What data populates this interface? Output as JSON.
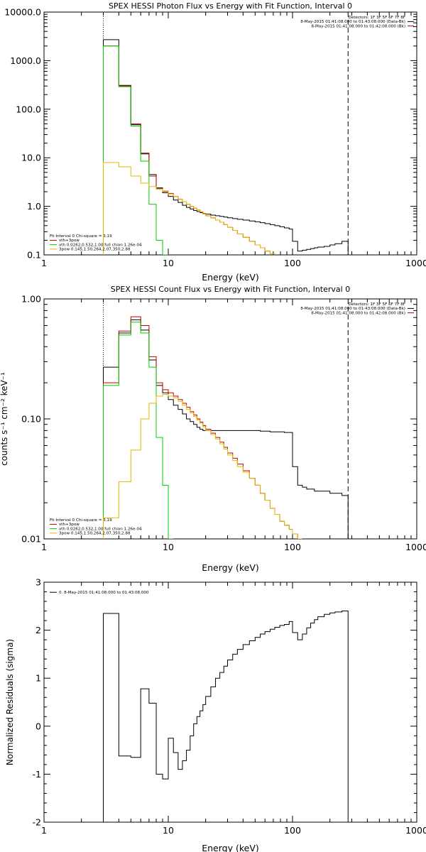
{
  "chart_data": [
    {
      "type": "line",
      "title": "SPEX HESSI Photon Flux vs Energy with Fit Function, Interval 0",
      "xlabel": "Energy (keV)",
      "ylabel": "",
      "xscale": "log",
      "yscale": "log",
      "xlim": [
        1,
        1000
      ],
      "ylim": [
        0.1,
        10000
      ],
      "xticks": [
        {
          "v": 1,
          "label": "1"
        },
        {
          "v": 10,
          "label": "10"
        },
        {
          "v": 100,
          "label": "100"
        },
        {
          "v": 1000,
          "label": "1000"
        }
      ],
      "yticks": [
        {
          "v": 0.1,
          "label": "0.1"
        },
        {
          "v": 1,
          "label": "1.0"
        },
        {
          "v": 10,
          "label": "10.0"
        },
        {
          "v": 100,
          "label": "100.0"
        },
        {
          "v": 1000,
          "label": "1000.0"
        },
        {
          "v": 10000,
          "label": "10000.0"
        }
      ],
      "energy_range_markers": [
        {
          "x": 3,
          "style": "dotted"
        },
        {
          "x": 280,
          "style": "dashed"
        }
      ],
      "legend_top_right": {
        "lines": [
          {
            "text": "Detectors: 1F 3F 5F 6F 7F 8F",
            "color": ""
          },
          {
            "text": "8-May-2015 01:41:08.000 to 01:43:08.000 (Data-Bk)",
            "color": "#000000"
          },
          {
            "text": "8-May-2015 01:41:08.000 to 01:42:08.000 (Bk)",
            "color": "#c00000"
          }
        ]
      },
      "legend_bottom_left": {
        "lines": [
          {
            "text": "Fit Interval 0   Chi-square = 3.19",
            "color": ""
          },
          {
            "text": "vth+3pow",
            "color": "#c00000"
          },
          {
            "text": "vth 0.0262,0.532,1.00  full chian 1.26e-04",
            "color": "#00cc00"
          },
          {
            "text": "3pow 0.145,1.50,264,2.07,350,2.88",
            "color": "#e0b800"
          }
        ]
      },
      "edges": [
        3,
        4,
        5,
        6,
        7,
        8,
        9,
        10,
        11,
        12,
        13,
        14,
        15,
        16,
        17,
        18,
        19,
        20,
        22,
        24,
        26,
        28,
        30,
        33,
        36,
        40,
        45,
        50,
        55,
        60,
        66,
        72,
        79,
        86,
        94,
        100,
        110,
        120,
        130,
        140,
        150,
        160,
        180,
        200,
        220,
        250,
        280
      ],
      "series": [
        {
          "name": "Data-Bk",
          "color": "#000000",
          "values": [
            2700,
            310,
            48,
            12,
            4.5,
            2.4,
            1.9,
            1.6,
            1.35,
            1.2,
            1.05,
            0.95,
            0.88,
            0.82,
            0.78,
            0.74,
            0.71,
            0.69,
            0.66,
            0.64,
            0.62,
            0.6,
            0.58,
            0.56,
            0.54,
            0.52,
            0.5,
            0.48,
            0.46,
            0.44,
            0.42,
            0.4,
            0.38,
            0.36,
            0.34,
            0.19,
            0.12,
            0.125,
            0.13,
            0.135,
            0.14,
            0.145,
            0.15,
            0.16,
            0.17,
            0.19
          ]
        },
        {
          "name": "vth+3pow",
          "color": "#c00000",
          "values": [
            2000,
            300,
            50,
            12.5,
            4.2,
            2.3,
            2.05,
            1.85,
            1.6,
            1.4,
            1.25,
            1.1,
            1.0,
            0.92,
            0.84,
            0.77,
            0.7,
            0.64,
            0.58,
            0.52,
            0.47,
            0.42,
            0.37,
            0.32,
            0.27,
            0.23,
            0.19,
            0.16,
            0.14,
            0.12,
            0.105
          ]
        },
        {
          "name": "vth",
          "color": "#00cc00",
          "values": [
            2000,
            290,
            45,
            8.5,
            1.1,
            0.2,
            0.06
          ]
        },
        {
          "name": "3pow",
          "color": "#e0b800",
          "values": [
            8,
            6.5,
            4.2,
            3.0,
            2.55,
            2.25,
            2.0,
            1.8,
            1.6,
            1.4,
            1.25,
            1.1,
            1.0,
            0.92,
            0.84,
            0.77,
            0.7,
            0.64,
            0.58,
            0.52,
            0.47,
            0.42,
            0.37,
            0.32,
            0.27,
            0.23,
            0.19,
            0.16,
            0.14,
            0.12,
            0.105
          ]
        }
      ]
    },
    {
      "type": "line",
      "title": "SPEX HESSI Count Flux vs Energy with Fit Function, Interval 0",
      "xlabel": "Energy (keV)",
      "ylabel": "counts s⁻¹ cm⁻² keV⁻¹",
      "xscale": "log",
      "yscale": "log",
      "xlim": [
        1,
        1000
      ],
      "ylim": [
        0.01,
        1
      ],
      "xticks": [
        {
          "v": 1,
          "label": "1"
        },
        {
          "v": 10,
          "label": "10"
        },
        {
          "v": 100,
          "label": "100"
        },
        {
          "v": 1000,
          "label": "1000"
        }
      ],
      "yticks": [
        {
          "v": 0.01,
          "label": "0.01"
        },
        {
          "v": 0.1,
          "label": "0.10"
        },
        {
          "v": 1,
          "label": "1.00"
        }
      ],
      "energy_range_markers": [
        {
          "x": 3,
          "style": "dotted"
        },
        {
          "x": 280,
          "style": "dashed"
        }
      ],
      "legend_top_right": {
        "lines": [
          {
            "text": "Detectors: 1F 3F 5F 6F 7F 8F",
            "color": ""
          },
          {
            "text": "8-May-2015 01:41:08.000 to 01:43:08.000 (Data-Bk)",
            "color": "#000000"
          },
          {
            "text": "8-May-2015 01:41:08.000 to 01:42:08.000 (Bk)",
            "color": "#c00000"
          }
        ]
      },
      "legend_bottom_left": {
        "lines": [
          {
            "text": "Fit Interval 0   Chi-square = 3.19",
            "color": ""
          },
          {
            "text": "vth+3pow",
            "color": "#c00000"
          },
          {
            "text": "vth 0.0262,0.532,1.00  full chian 1.26e-04",
            "color": "#00cc00"
          },
          {
            "text": "3pow 0.145,1.50,264,2.07,350,2.88",
            "color": "#e0b800"
          }
        ]
      },
      "edges": [
        3,
        4,
        5,
        6,
        7,
        8,
        9,
        10,
        11,
        12,
        13,
        14,
        15,
        16,
        17,
        18,
        19,
        20,
        22,
        24,
        26,
        28,
        30,
        33,
        36,
        40,
        45,
        50,
        55,
        60,
        66,
        72,
        79,
        86,
        94,
        100,
        110,
        120,
        130,
        140,
        150,
        160,
        180,
        200,
        220,
        250,
        280
      ],
      "series": [
        {
          "name": "Data-Bk",
          "color": "#000000",
          "values": [
            0.27,
            0.52,
            0.67,
            0.55,
            0.31,
            0.19,
            0.165,
            0.145,
            0.13,
            0.12,
            0.11,
            0.1,
            0.095,
            0.09,
            0.085,
            0.082,
            0.08,
            0.08,
            0.08,
            0.08,
            0.08,
            0.08,
            0.08,
            0.08,
            0.08,
            0.08,
            0.08,
            0.08,
            0.079,
            0.079,
            0.078,
            0.078,
            0.078,
            0.077,
            0.077,
            0.04,
            0.028,
            0.027,
            0.026,
            0.026,
            0.025,
            0.025,
            0.025,
            0.024,
            0.024,
            0.023
          ]
        },
        {
          "name": "vth+3pow",
          "color": "#c00000",
          "values": [
            0.2,
            0.54,
            0.71,
            0.6,
            0.33,
            0.2,
            0.175,
            0.165,
            0.155,
            0.145,
            0.135,
            0.125,
            0.115,
            0.108,
            0.1,
            0.094,
            0.088,
            0.082,
            0.076,
            0.07,
            0.064,
            0.058,
            0.052,
            0.047,
            0.042,
            0.037,
            0.032,
            0.028,
            0.024,
            0.021,
            0.018,
            0.016,
            0.014,
            0.013,
            0.012,
            0.011,
            0.0095
          ]
        },
        {
          "name": "vth",
          "color": "#00cc00",
          "values": [
            0.19,
            0.5,
            0.64,
            0.52,
            0.27,
            0.07,
            0.028,
            0.01
          ]
        },
        {
          "name": "3pow",
          "color": "#e0b800",
          "values": [
            0.015,
            0.03,
            0.055,
            0.1,
            0.135,
            0.155,
            0.16,
            0.155,
            0.15,
            0.14,
            0.13,
            0.12,
            0.112,
            0.105,
            0.098,
            0.092,
            0.086,
            0.08,
            0.074,
            0.068,
            0.062,
            0.056,
            0.05,
            0.045,
            0.04,
            0.036,
            0.032,
            0.028,
            0.024,
            0.021,
            0.018,
            0.016,
            0.014,
            0.013,
            0.012,
            0.011,
            0.0095
          ]
        }
      ]
    },
    {
      "type": "line",
      "title": "",
      "xlabel": "Energy (keV)",
      "ylabel": "Normalized Residuals (sigma)",
      "xscale": "log",
      "yscale": "linear",
      "xlim": [
        1,
        1000
      ],
      "ylim": [
        -2,
        3
      ],
      "xticks": [
        {
          "v": 1,
          "label": "1"
        },
        {
          "v": 10,
          "label": "10"
        },
        {
          "v": 100,
          "label": "100"
        },
        {
          "v": 1000,
          "label": "1000"
        }
      ],
      "yticks": [
        {
          "v": -2,
          "label": "-2"
        },
        {
          "v": -1,
          "label": "-1"
        },
        {
          "v": 0,
          "label": "0"
        },
        {
          "v": 1,
          "label": "1"
        },
        {
          "v": 2,
          "label": "2"
        },
        {
          "v": 3,
          "label": "3"
        }
      ],
      "legend_top_left": {
        "lines": [
          {
            "text": "0.  8-May-2015 01:41:08.000 to 01:43:08.000",
            "color": "#000000"
          }
        ]
      },
      "edges": [
        3,
        4,
        5,
        6,
        7,
        8,
        9,
        10,
        11,
        12,
        13,
        14,
        15,
        16,
        17,
        18,
        19,
        20,
        22,
        24,
        26,
        28,
        30,
        33,
        36,
        40,
        45,
        50,
        55,
        60,
        66,
        72,
        79,
        86,
        94,
        100,
        110,
        120,
        130,
        140,
        150,
        160,
        180,
        200,
        220,
        250,
        280
      ],
      "series": [
        {
          "name": "Residuals",
          "color": "#000000",
          "values": [
            2.35,
            -0.62,
            -0.65,
            0.78,
            0.48,
            -1.0,
            -1.1,
            -0.25,
            -0.55,
            -0.9,
            -0.72,
            -0.5,
            -0.2,
            0.05,
            0.2,
            0.32,
            0.45,
            0.62,
            0.82,
            1.0,
            1.12,
            1.25,
            1.38,
            1.5,
            1.6,
            1.7,
            1.78,
            1.85,
            1.92,
            1.97,
            2.02,
            2.06,
            2.1,
            2.12,
            2.18,
            1.95,
            1.8,
            1.92,
            2.05,
            2.15,
            2.22,
            2.28,
            2.33,
            2.36,
            2.38,
            2.4
          ]
        }
      ]
    }
  ]
}
